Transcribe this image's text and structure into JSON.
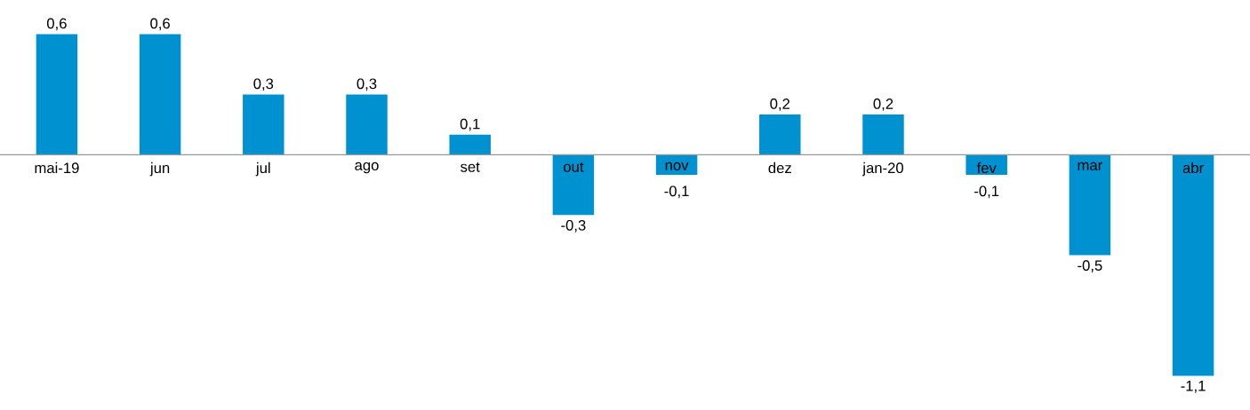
{
  "chart_data": {
    "type": "bar",
    "categories": [
      "mai-19",
      "jun",
      "jul",
      "ago",
      "set",
      "out",
      "nov",
      "dez",
      "jan-20",
      "fev",
      "mar",
      "abr"
    ],
    "values": [
      0.6,
      0.6,
      0.3,
      0.3,
      0.1,
      -0.3,
      -0.1,
      0.2,
      0.2,
      -0.1,
      -0.5,
      -1.1
    ],
    "value_labels": [
      "0,6",
      "0,6",
      "0,3",
      "0,3",
      "0,1",
      "-0,3",
      "-0,1",
      "0,2",
      "0,2",
      "-0,1",
      "-0,5",
      "-1,1"
    ],
    "color": "#0091d0"
  }
}
